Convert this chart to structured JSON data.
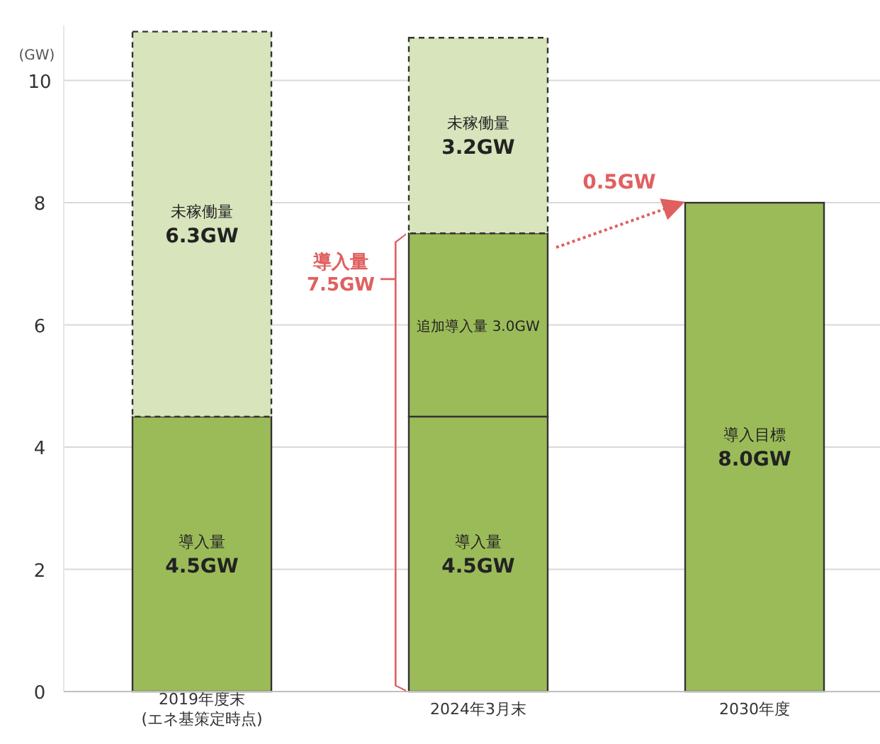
{
  "chart_data": {
    "type": "bar",
    "stacked": true,
    "ylabel": "(GW)",
    "categories": [
      "2019年度末\n(エネ基策定時点)",
      "2024年3月末",
      "2030年度"
    ],
    "series": [
      {
        "color": "#9bbb59",
        "values": [
          4.5,
          4.5,
          null
        ],
        "value_labels": [
          "導入量\n4.5GW",
          "導入量\n4.5GW",
          null
        ]
      },
      {
        "color": "#9bbb59",
        "values": [
          null,
          3.0,
          null
        ],
        "value_labels": [
          null,
          "追加導入量 3.0GW",
          null
        ]
      },
      {
        "color": "#d8e4bc",
        "line_style": "dashed",
        "values": [
          6.3,
          3.2,
          null
        ],
        "value_labels": [
          "未稼働量\n6.3GW",
          "未稼働量\n3.2GW",
          null
        ]
      },
      {
        "color": "#9bbb59",
        "values": [
          null,
          null,
          8.0
        ],
        "value_labels": [
          null,
          null,
          "導入目標\n8.0GW"
        ]
      }
    ],
    "ylim": [
      0,
      10.9
    ],
    "yticks": [
      0,
      2,
      4,
      6,
      8,
      10
    ],
    "grid": "y",
    "annotations": [
      "導入量\n7.5GW",
      "0.5GW"
    ]
  }
}
